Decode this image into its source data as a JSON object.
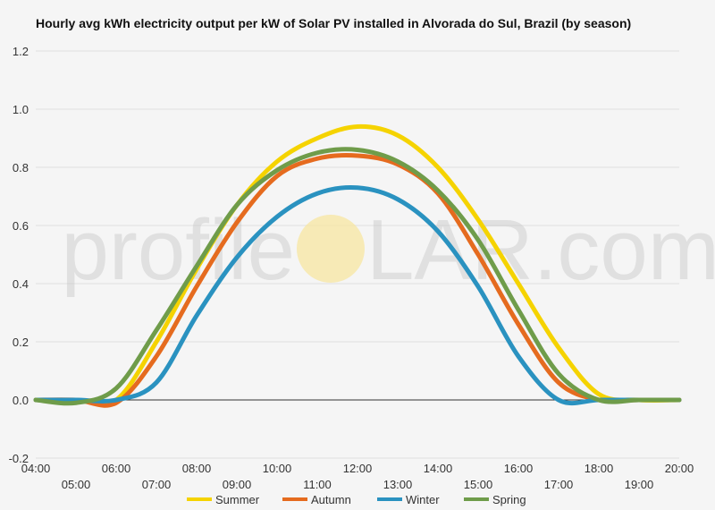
{
  "chart_data": {
    "type": "line",
    "title": "Hourly avg kWh electricity output per kW of Solar PV installed in Alvorada do Sul, Brazil (by season)",
    "xlabel": "",
    "ylabel": "",
    "xlim": [
      4,
      20
    ],
    "ylim": [
      -0.2,
      1.2
    ],
    "y_ticks": [
      "-0.2",
      "0.0",
      "0.2",
      "0.4",
      "0.6",
      "0.8",
      "1.0",
      "1.2"
    ],
    "x_tick_labels": [
      "04:00",
      "05:00",
      "06:00",
      "07:00",
      "08:00",
      "09:00",
      "10:00",
      "11:00",
      "12:00",
      "13:00",
      "14:00",
      "15:00",
      "16:00",
      "17:00",
      "18:00",
      "19:00",
      "20:00"
    ],
    "grid": true,
    "legend_position": "bottom",
    "x": [
      4,
      5,
      6,
      7,
      8,
      9,
      10,
      11,
      12,
      13,
      14,
      15,
      16,
      17,
      18,
      19,
      20
    ],
    "series": [
      {
        "name": "Summer",
        "color": "#f5d300",
        "values": [
          0,
          0,
          0,
          0.2,
          0.45,
          0.67,
          0.82,
          0.9,
          0.94,
          0.91,
          0.8,
          0.62,
          0.4,
          0.18,
          0.02,
          0,
          0
        ]
      },
      {
        "name": "Autumn",
        "color": "#e56b1f",
        "values": [
          0,
          0,
          -0.01,
          0.15,
          0.39,
          0.61,
          0.77,
          0.83,
          0.84,
          0.81,
          0.71,
          0.5,
          0.26,
          0.06,
          0,
          0,
          0
        ]
      },
      {
        "name": "Winter",
        "color": "#2a92c0",
        "values": [
          0,
          0,
          0,
          0.06,
          0.29,
          0.49,
          0.63,
          0.71,
          0.73,
          0.69,
          0.58,
          0.39,
          0.15,
          0,
          0,
          0,
          0
        ]
      },
      {
        "name": "Spring",
        "color": "#6f9c4a",
        "values": [
          0,
          -0.01,
          0.04,
          0.24,
          0.46,
          0.67,
          0.79,
          0.85,
          0.86,
          0.82,
          0.72,
          0.55,
          0.31,
          0.09,
          0,
          0,
          0
        ]
      }
    ]
  },
  "watermark": {
    "text_left": "profile",
    "text_right": "LAR.com",
    "sun_color": "#f7e6a0"
  }
}
